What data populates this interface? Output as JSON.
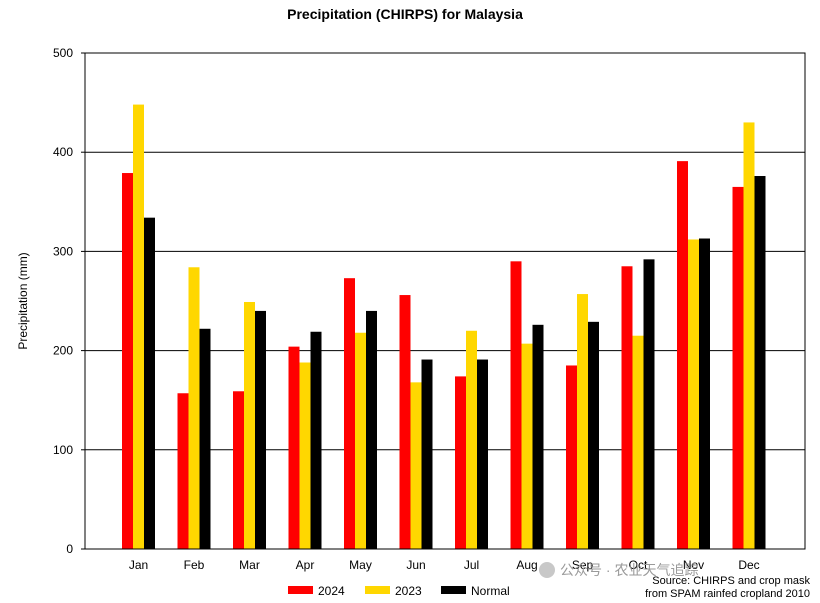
{
  "chart_data": {
    "type": "bar",
    "title": "Precipitation (CHIRPS) for Malaysia",
    "xlabel": "",
    "ylabel": "Precipitation (mm)",
    "ylim": [
      0,
      500
    ],
    "yticks": [
      0,
      100,
      200,
      300,
      400,
      500
    ],
    "grid": true,
    "categories": [
      "Jan",
      "Feb",
      "Mar",
      "Apr",
      "May",
      "Jun",
      "Jul",
      "Aug",
      "Sep",
      "Oct",
      "Nov",
      "Dec"
    ],
    "series": [
      {
        "name": "2024",
        "color": "#ff0000",
        "values": [
          379,
          157,
          159,
          204,
          273,
          256,
          174,
          290,
          185,
          285,
          391,
          365
        ]
      },
      {
        "name": "2023",
        "color": "#ffd700",
        "values": [
          448,
          284,
          249,
          188,
          218,
          168,
          220,
          207,
          257,
          215,
          312,
          430
        ]
      },
      {
        "name": "Normal",
        "color": "#000000",
        "values": [
          334,
          222,
          240,
          219,
          240,
          191,
          191,
          226,
          229,
          292,
          313,
          376
        ]
      }
    ],
    "legend_position": "bottom-center",
    "source_note": [
      "Source: CHIRPS and crop mask",
      "from SPAM rainfed cropland 2010"
    ]
  },
  "watermark": "公众号 · 农业天气追踪"
}
